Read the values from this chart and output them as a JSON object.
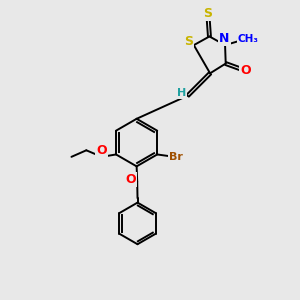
{
  "bg_color": "#e8e8e8",
  "bond_color": "#000000",
  "atom_colors": {
    "S": "#c8b400",
    "N": "#0000ff",
    "O": "#ff0000",
    "Br": "#a05000",
    "H": "#20a0a0",
    "C": "#000000"
  },
  "font_size": 8.0,
  "xlim": [
    0,
    10
  ],
  "ylim": [
    0,
    10
  ]
}
